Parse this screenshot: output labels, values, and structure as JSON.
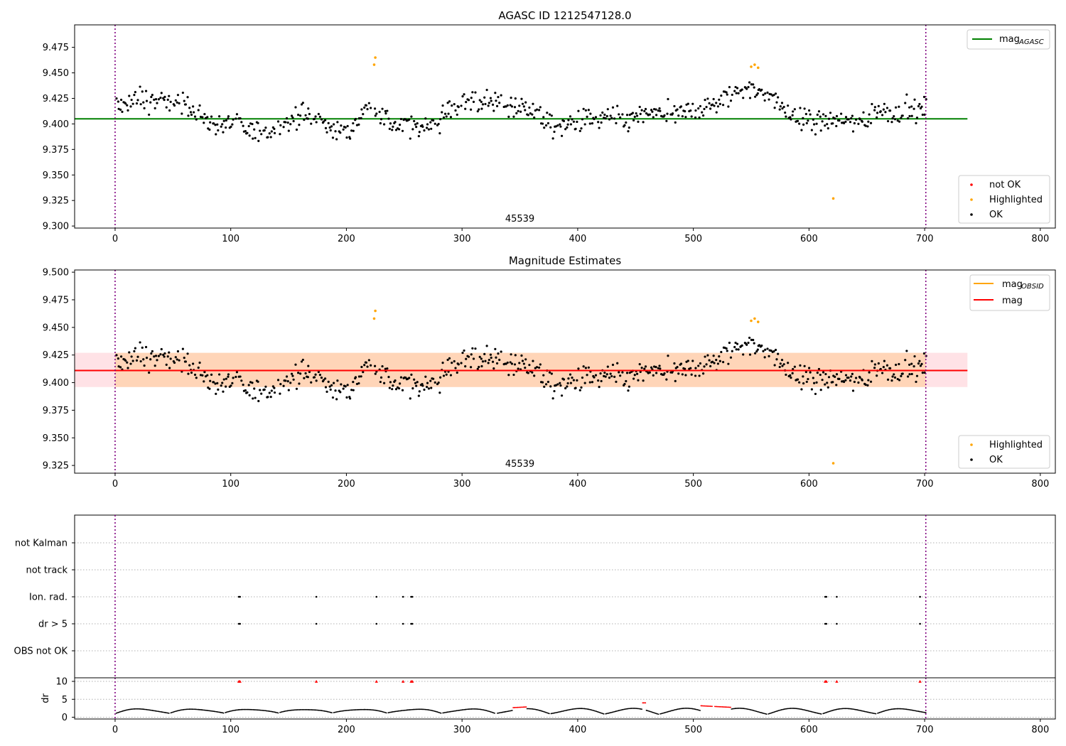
{
  "figure": {
    "title": "AGASC ID 1212547128.0"
  },
  "chart_data": [
    {
      "id": "agasc",
      "type": "scatter",
      "title": "",
      "xlabel": "",
      "ylabel": "",
      "xlim": [
        -35,
        813
      ],
      "ylim": [
        9.298,
        9.497
      ],
      "xticks": [
        0,
        100,
        200,
        300,
        400,
        500,
        600,
        700,
        800
      ],
      "yticks": [
        9.3,
        9.325,
        9.35,
        9.375,
        9.4,
        9.425,
        9.45,
        9.475
      ],
      "ytick_format": 3,
      "grid": false,
      "obs_bounds": [
        0,
        701
      ],
      "obs_label": "45539",
      "lines": [
        {
          "name": "mag_AGASC",
          "legend_main": "mag",
          "legend_sub": "AGASC",
          "color": "#008000",
          "y": 9.405,
          "x": [
            -35,
            737
          ]
        }
      ],
      "series": [
        {
          "name": "not OK",
          "color": "#ff0000",
          "points": []
        },
        {
          "name": "Highlighted",
          "color": "#ffa500",
          "points": [
            [
              224,
              9.458
            ],
            [
              225,
              9.465
            ],
            [
              550,
              9.456
            ],
            [
              553,
              9.458
            ],
            [
              556,
              9.455
            ],
            [
              621,
              9.327
            ]
          ]
        },
        {
          "name": "OK",
          "color": "#000000",
          "note_generated": "dense OK scatter ~700 points around 9.40-9.45"
        }
      ],
      "legend_upper": "top-right",
      "legend_lower": "bottom-right"
    },
    {
      "id": "estimates",
      "type": "scatter",
      "title": "Magnitude Estimates",
      "xlabel": "",
      "ylabel": "",
      "xlim": [
        -35,
        813
      ],
      "ylim": [
        9.318,
        9.502
      ],
      "xticks": [
        0,
        100,
        200,
        300,
        400,
        500,
        600,
        700,
        800
      ],
      "yticks": [
        9.325,
        9.35,
        9.375,
        9.4,
        9.425,
        9.45,
        9.475,
        9.5
      ],
      "ytick_format": 3,
      "grid": false,
      "obs_bounds": [
        0,
        701
      ],
      "obs_label": "45539",
      "band": {
        "y0": 9.396,
        "y1": 9.427,
        "x": [
          -35,
          737
        ]
      },
      "lines": [
        {
          "name": "mag_OBSID",
          "legend_main": "mag",
          "legend_sub": "OBSID",
          "color": "#ffa500",
          "y": 9.411,
          "x": [
            0,
            701
          ]
        },
        {
          "name": "mag",
          "legend_main": "mag",
          "legend_sub": "",
          "color": "#ff0000",
          "y": 9.411,
          "x": [
            -35,
            737
          ]
        }
      ],
      "series": [
        {
          "name": "Highlighted",
          "color": "#ffa500",
          "points": [
            [
              224,
              9.458
            ],
            [
              225,
              9.465
            ],
            [
              550,
              9.456
            ],
            [
              553,
              9.458
            ],
            [
              556,
              9.455
            ],
            [
              621,
              9.327
            ]
          ]
        },
        {
          "name": "OK",
          "color": "#000000"
        }
      ],
      "legend_upper": "top-right",
      "legend_lower": "bottom-right"
    },
    {
      "id": "flags",
      "type": "scatter",
      "title": "",
      "xlim": [
        -35,
        813
      ],
      "categories": [
        "not Kalman",
        "not track",
        "Ion. rad.",
        "dr > 5",
        "OBS not OK"
      ],
      "grid": true,
      "obs_bounds": [
        0,
        701
      ],
      "flag_points": {
        "Ion. rad.": [
          107,
          108,
          174,
          226,
          249,
          256,
          257,
          614,
          615,
          624,
          696
        ],
        "dr > 5": [
          107,
          108,
          174,
          226,
          249,
          256,
          257,
          614,
          615,
          624,
          696
        ]
      }
    },
    {
      "id": "dr",
      "type": "scatter",
      "title": "",
      "ylabel": "dr",
      "xlim": [
        -35,
        813
      ],
      "ylim": [
        -0.5,
        11
      ],
      "xticks": [
        0,
        100,
        200,
        300,
        400,
        500,
        600,
        700,
        800
      ],
      "yticks": [
        0,
        5,
        10
      ],
      "grid": true,
      "obs_bounds": [
        0,
        701
      ],
      "outlier_x": [
        107,
        108,
        174,
        226,
        249,
        256,
        257,
        614,
        615,
        624,
        696
      ],
      "outlier_y": 10,
      "red_segments": [
        [
          344,
          356
        ],
        [
          456,
          459
        ],
        [
          506,
          533
        ]
      ]
    }
  ]
}
